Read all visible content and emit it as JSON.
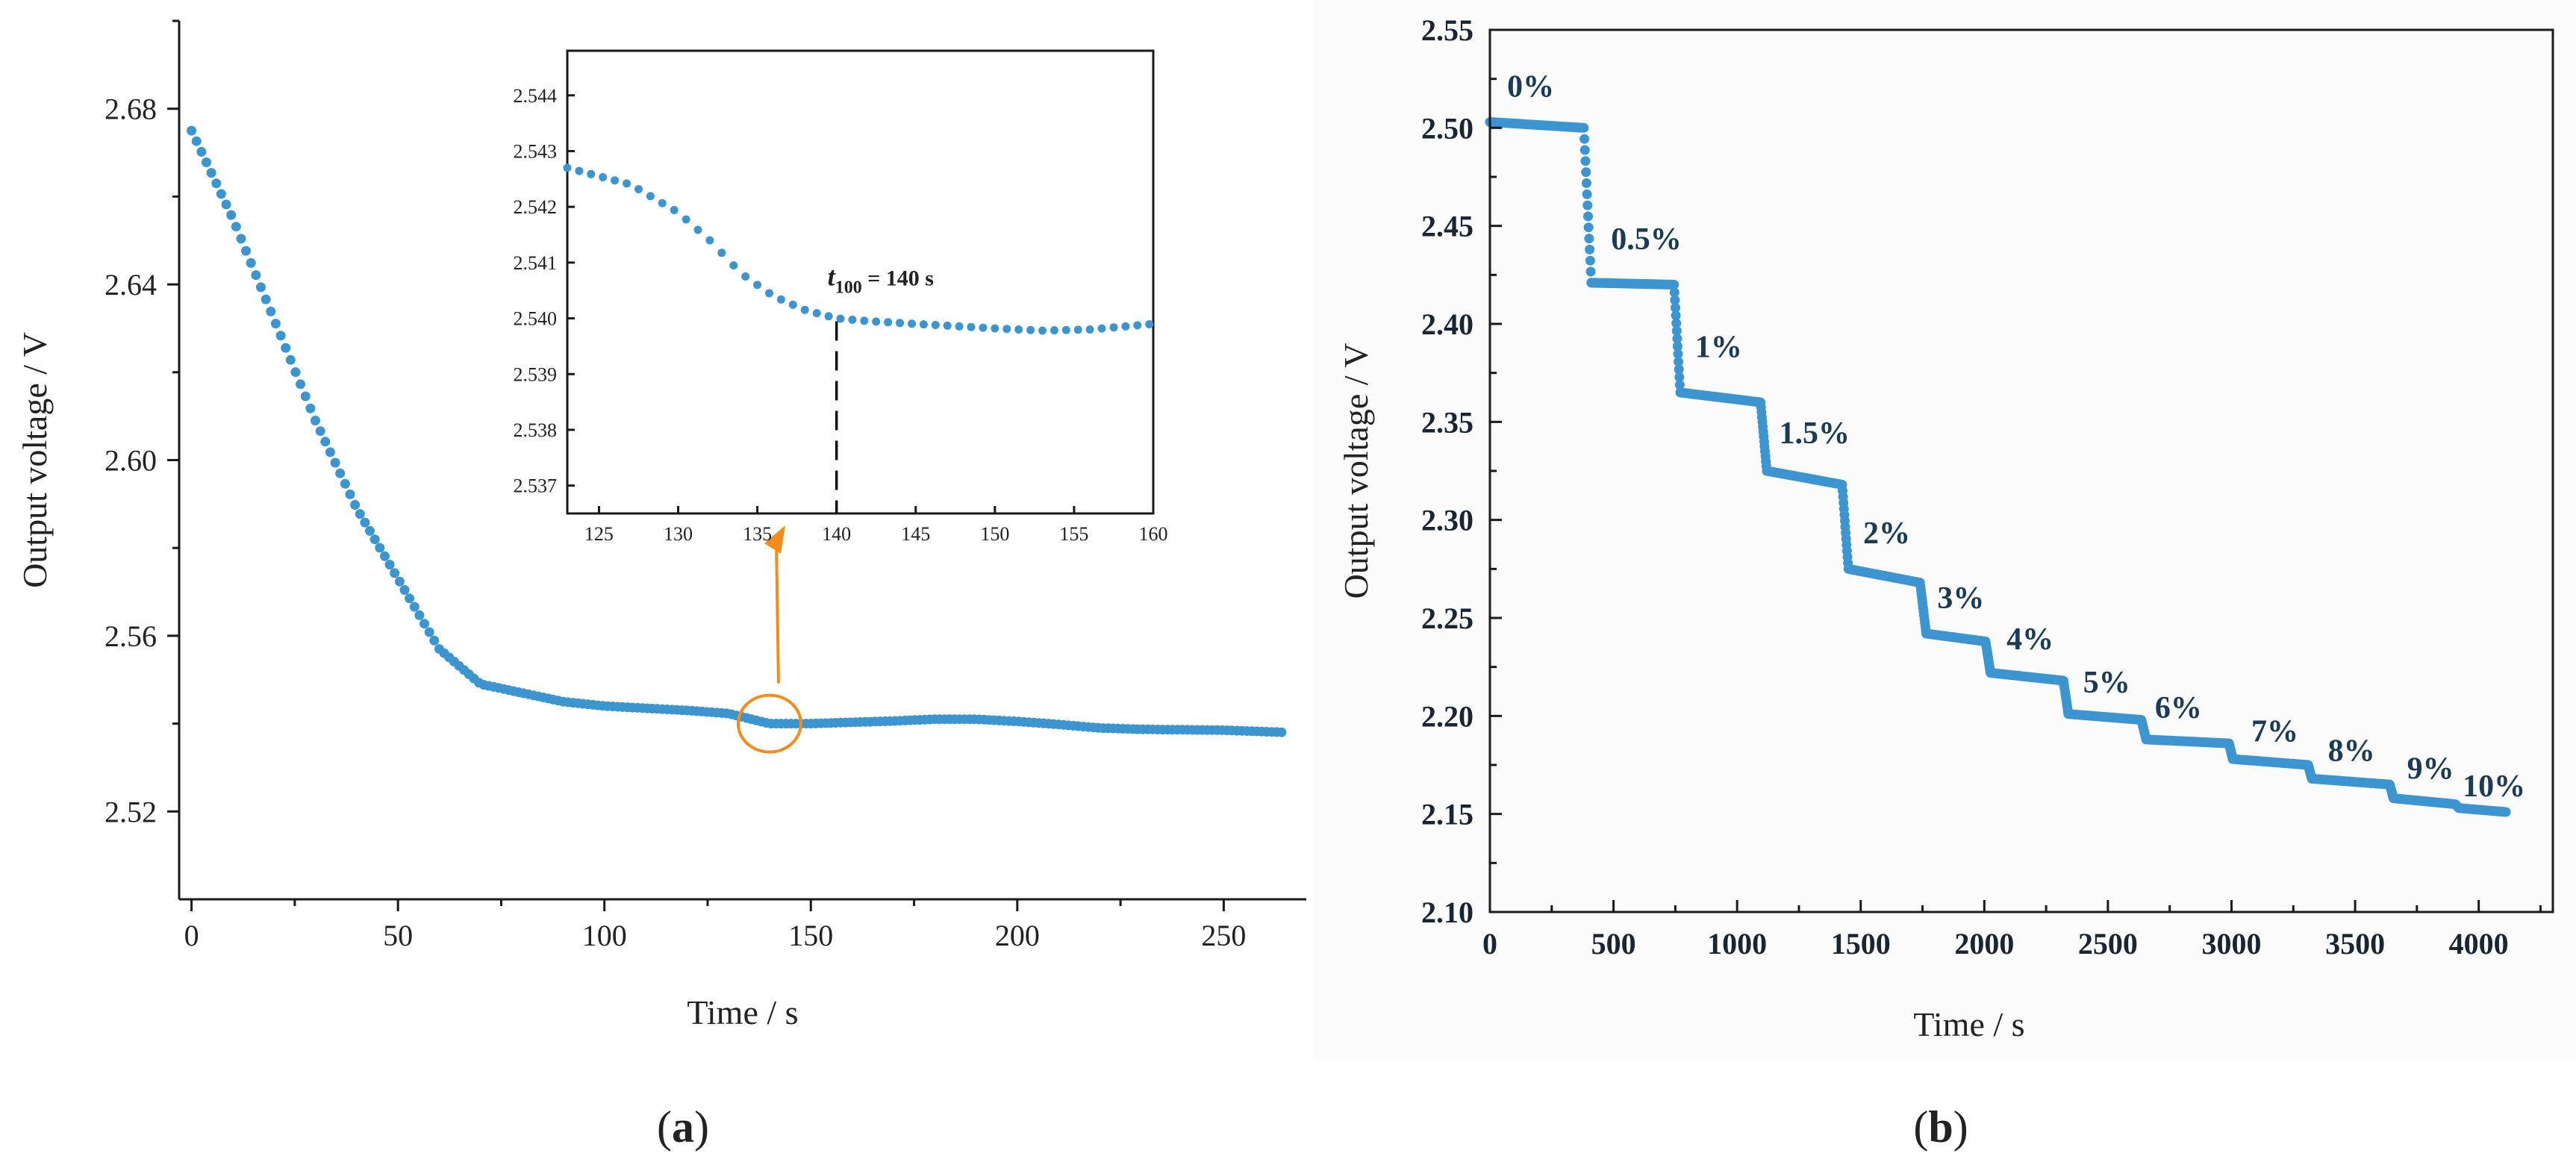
{
  "colors": {
    "series": "#3d95d0",
    "highlight": "#f28c1c",
    "axis": "#1a1a1a"
  },
  "chart_data": [
    {
      "id": "a",
      "type": "scatter",
      "panel_label_prefix": "(",
      "panel_label_letter": "a",
      "panel_label_suffix": ")",
      "xlabel": "Time / s",
      "ylabel": "Output voltage / V",
      "xlim": [
        -3,
        270
      ],
      "ylim": [
        2.5,
        2.7
      ],
      "xticks": [
        0,
        50,
        100,
        150,
        200,
        250
      ],
      "xtick_labels": [
        "0",
        "50",
        "100",
        "150",
        "200",
        "250"
      ],
      "yticks": [
        2.52,
        2.56,
        2.6,
        2.64,
        2.68
      ],
      "ytick_labels": [
        "2.52",
        "2.56",
        "2.60",
        "2.64",
        "2.68"
      ],
      "x_step": 1.2,
      "x_end": 265,
      "curve_points": [
        [
          0,
          2.675
        ],
        [
          10,
          2.655
        ],
        [
          20,
          2.632
        ],
        [
          30,
          2.609
        ],
        [
          40,
          2.589
        ],
        [
          50,
          2.573
        ],
        [
          60,
          2.557
        ],
        [
          70,
          2.549
        ],
        [
          80,
          2.547
        ],
        [
          90,
          2.545
        ],
        [
          100,
          2.544
        ],
        [
          110,
          2.5435
        ],
        [
          120,
          2.543
        ],
        [
          130,
          2.5423
        ],
        [
          140,
          2.54
        ],
        [
          150,
          2.54
        ],
        [
          160,
          2.5403
        ],
        [
          170,
          2.5406
        ],
        [
          180,
          2.541
        ],
        [
          190,
          2.541
        ],
        [
          200,
          2.5405
        ],
        [
          210,
          2.5398
        ],
        [
          220,
          2.539
        ],
        [
          230,
          2.5387
        ],
        [
          240,
          2.5386
        ],
        [
          250,
          2.5385
        ],
        [
          265,
          2.538
        ]
      ],
      "highlight": {
        "x": 140,
        "y": 2.54
      },
      "inset": {
        "xlim": [
          123,
          160
        ],
        "ylim": [
          2.5365,
          2.5448
        ],
        "xticks": [
          125,
          130,
          135,
          140,
          145,
          150,
          155,
          160
        ],
        "xtick_labels": [
          "125",
          "130",
          "135",
          "140",
          "145",
          "150",
          "155",
          "160"
        ],
        "yticks": [
          2.537,
          2.538,
          2.539,
          2.54,
          2.541,
          2.542,
          2.543,
          2.544
        ],
        "ytick_labels": [
          "2.537",
          "2.538",
          "2.539",
          "2.540",
          "2.541",
          "2.542",
          "2.543",
          "2.544"
        ],
        "x_step": 0.75,
        "curve_points": [
          [
            123,
            2.5427
          ],
          [
            125,
            2.54255
          ],
          [
            127,
            2.5424
          ],
          [
            130,
            2.5419
          ],
          [
            132,
            2.5414
          ],
          [
            134,
            2.5408
          ],
          [
            136,
            2.5404
          ],
          [
            138,
            2.54015
          ],
          [
            140,
            2.54
          ],
          [
            142,
            2.53995
          ],
          [
            145,
            2.5399
          ],
          [
            150,
            2.53982
          ],
          [
            153,
            2.53978
          ],
          [
            156,
            2.5398
          ],
          [
            158,
            2.53985
          ],
          [
            160,
            2.5399
          ]
        ],
        "marker_x": 140,
        "annotation": {
          "italic": "t",
          "subscript": "100",
          "text": " = 140 s"
        }
      }
    },
    {
      "id": "b",
      "type": "scatter",
      "panel_label_prefix": "(",
      "panel_label_letter": "b",
      "panel_label_suffix": ")",
      "xlabel": "Time / s",
      "ylabel": "Output voltage / V",
      "xlim": [
        0,
        4300
      ],
      "ylim": [
        2.1,
        2.55
      ],
      "xticks": [
        0,
        500,
        1000,
        1500,
        2000,
        2500,
        3000,
        3500,
        4000
      ],
      "xtick_labels": [
        "0",
        "500",
        "1000",
        "1500",
        "2000",
        "2500",
        "3000",
        "3500",
        "4000"
      ],
      "yticks": [
        2.1,
        2.15,
        2.2,
        2.25,
        2.3,
        2.35,
        2.4,
        2.45,
        2.5,
        2.55
      ],
      "ytick_labels": [
        "2.10",
        "2.15",
        "2.20",
        "2.25",
        "2.30",
        "2.35",
        "2.40",
        "2.45",
        "2.50",
        "2.55"
      ],
      "x_step": 5,
      "series": [
        {
          "label": "0%",
          "x_start": 0,
          "x_end": 380,
          "plateau": 2.503,
          "end": 2.5,
          "label_x": 70,
          "label_y": 2.516
        },
        {
          "label": "0.5%",
          "x_start": 410,
          "x_end": 745,
          "plateau": 2.421,
          "end": 2.42,
          "label_x": 490,
          "label_y": 2.438
        },
        {
          "label": "1%",
          "x_start": 770,
          "x_end": 1095,
          "plateau": 2.365,
          "end": 2.36,
          "label_x": 830,
          "label_y": 2.383
        },
        {
          "label": "1.5%",
          "x_start": 1120,
          "x_end": 1425,
          "plateau": 2.325,
          "end": 2.318,
          "label_x": 1170,
          "label_y": 2.339
        },
        {
          "label": "2%",
          "x_start": 1450,
          "x_end": 1740,
          "plateau": 2.275,
          "end": 2.268,
          "label_x": 1510,
          "label_y": 2.288
        },
        {
          "label": "3%",
          "x_start": 1765,
          "x_end": 2005,
          "plateau": 2.242,
          "end": 2.238,
          "label_x": 1810,
          "label_y": 2.255
        },
        {
          "label": "4%",
          "x_start": 2025,
          "x_end": 2320,
          "plateau": 2.222,
          "end": 2.218,
          "label_x": 2090,
          "label_y": 2.234
        },
        {
          "label": "5%",
          "x_start": 2340,
          "x_end": 2635,
          "plateau": 2.201,
          "end": 2.198,
          "label_x": 2400,
          "label_y": 2.212
        },
        {
          "label": "6%",
          "x_start": 2655,
          "x_end": 2990,
          "plateau": 2.188,
          "end": 2.186,
          "label_x": 2690,
          "label_y": 2.199
        },
        {
          "label": "7%",
          "x_start": 3005,
          "x_end": 3310,
          "plateau": 2.178,
          "end": 2.175,
          "label_x": 3080,
          "label_y": 2.187
        },
        {
          "label": "8%",
          "x_start": 3325,
          "x_end": 3640,
          "plateau": 2.168,
          "end": 2.165,
          "label_x": 3390,
          "label_y": 2.177
        },
        {
          "label": "9%",
          "x_start": 3655,
          "x_end": 3905,
          "plateau": 2.158,
          "end": 2.155,
          "label_x": 3710,
          "label_y": 2.168
        },
        {
          "label": "10%",
          "x_start": 3920,
          "x_end": 4110,
          "plateau": 2.153,
          "end": 2.151,
          "label_x": 3935,
          "label_y": 2.159
        }
      ]
    }
  ]
}
